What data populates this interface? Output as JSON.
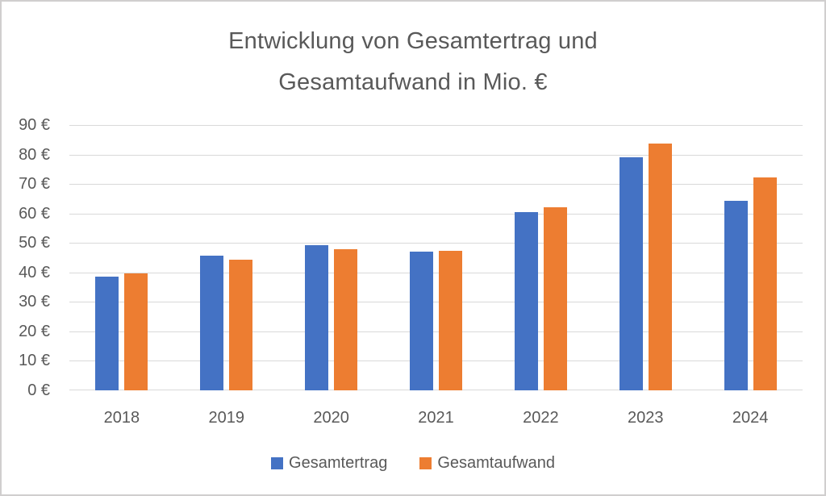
{
  "chart_data": {
    "type": "bar",
    "title": "Entwicklung von Gesamtertrag und Gesamtaufwand in Mio. €",
    "title_lines": [
      "Entwicklung von Gesamtertrag und",
      "Gesamtaufwand in Mio. €"
    ],
    "categories": [
      "2018",
      "2019",
      "2020",
      "2021",
      "2022",
      "2023",
      "2024"
    ],
    "series": [
      {
        "name": "Gesamtertrag",
        "color": "#4472C4",
        "values": [
          38.5,
          45.8,
          49.3,
          47.0,
          60.4,
          79.0,
          64.4
        ]
      },
      {
        "name": "Gesamtaufwand",
        "color": "#ED7D31",
        "values": [
          39.8,
          44.2,
          48.0,
          47.2,
          62.0,
          83.7,
          72.3
        ]
      }
    ],
    "ylabel": "",
    "xlabel": "",
    "ylim": [
      0,
      90
    ],
    "ytick_step": 10,
    "yticks": [
      "90 €",
      "80 €",
      "70 €",
      "60 €",
      "50 €",
      "40 €",
      "30 €",
      "20 €",
      "10 €",
      "0 €"
    ],
    "grid": true,
    "legend_position": "bottom",
    "colors": {
      "text": "#595959",
      "gridline": "#D9D9D9",
      "canvas_border": "#D0CECE",
      "background": "#FFFFFF"
    }
  }
}
